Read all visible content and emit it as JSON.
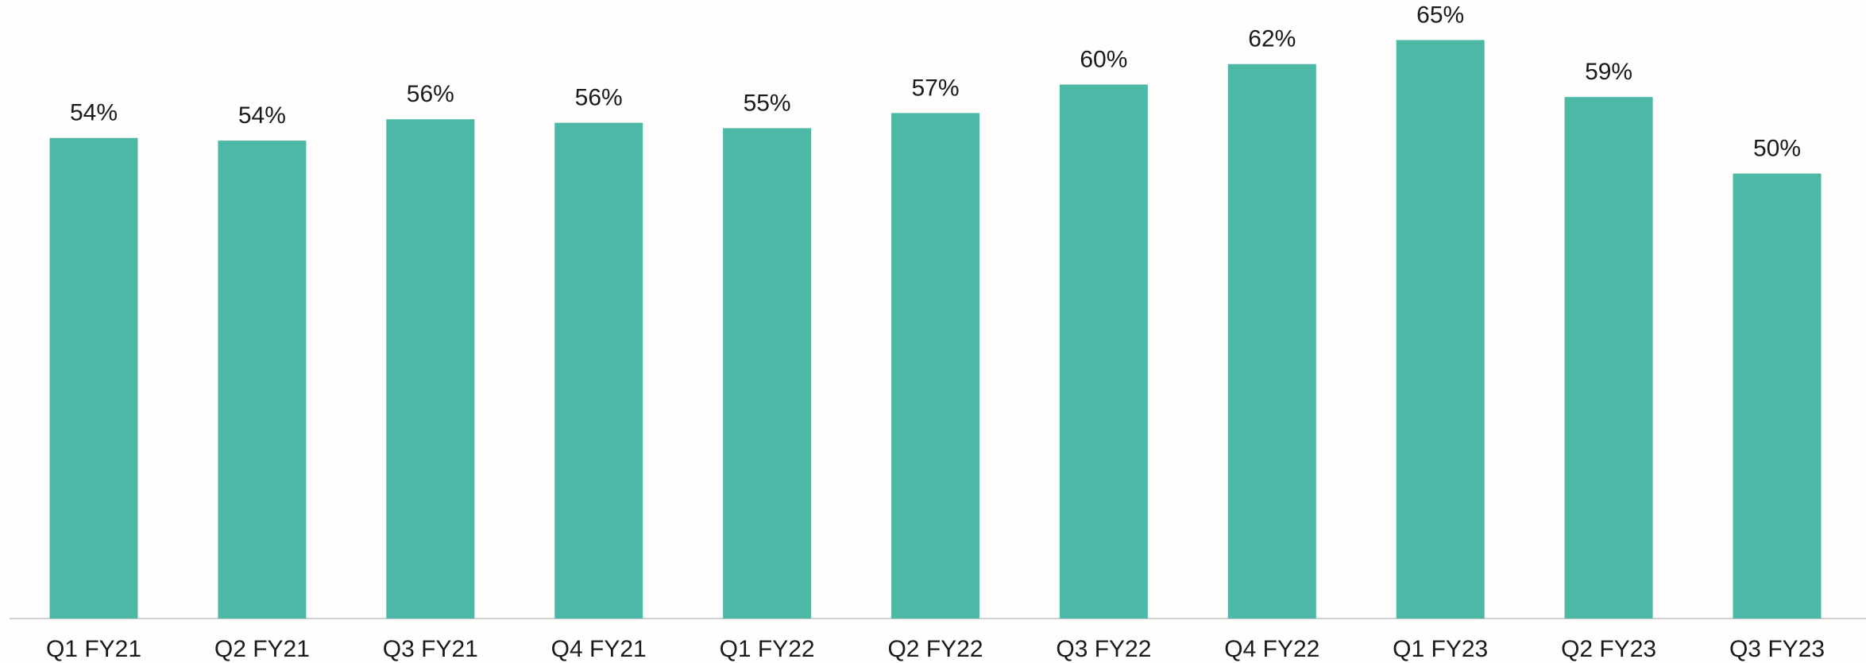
{
  "chart_data": {
    "type": "bar",
    "categories": [
      "Q1 FY21",
      "Q2 FY21",
      "Q3 FY21",
      "Q4 FY21",
      "Q1 FY22",
      "Q2 FY22",
      "Q3 FY22",
      "Q4 FY22",
      "Q1 FY23",
      "Q2 FY23",
      "Q3 FY23"
    ],
    "values": [
      54,
      53.7,
      56.1,
      55.7,
      55.1,
      56.8,
      60,
      62.3,
      65,
      58.6,
      50
    ],
    "value_labels": [
      "54%",
      "54%",
      "56%",
      "56%",
      "55%",
      "57%",
      "60%",
      "62%",
      "65%",
      "59%",
      "50%"
    ],
    "color": "#4db8a5",
    "ylim": [
      0,
      69.5
    ]
  }
}
